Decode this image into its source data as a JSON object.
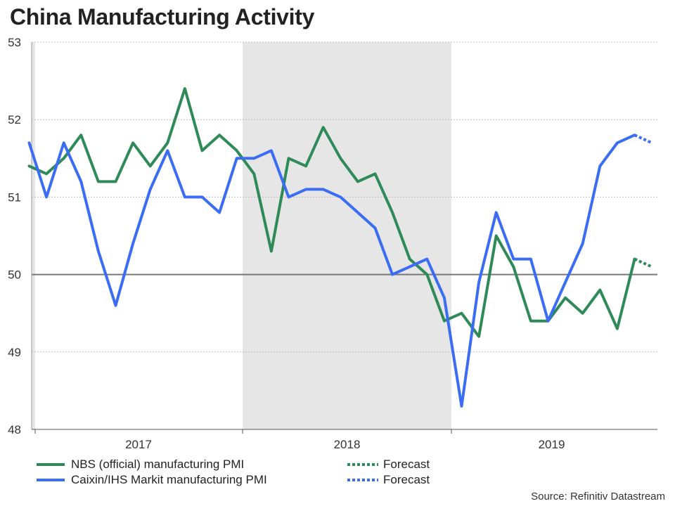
{
  "chart_data": {
    "type": "line",
    "title": "China Manufacturing Activity",
    "source": "Source: Refinitiv Datastream",
    "ylim": [
      48,
      53
    ],
    "yticks": [
      48,
      49,
      50,
      51,
      52,
      53
    ],
    "reference_line": 50,
    "x_labels": [
      "2017",
      "2018",
      "2019"
    ],
    "shaded_period": "2018",
    "grid": true,
    "months": [
      "2016-11",
      "2016-12",
      "2017-01",
      "2017-02",
      "2017-03",
      "2017-04",
      "2017-05",
      "2017-06",
      "2017-07",
      "2017-08",
      "2017-09",
      "2017-10",
      "2017-11",
      "2017-12",
      "2018-01",
      "2018-02",
      "2018-03",
      "2018-04",
      "2018-05",
      "2018-06",
      "2018-07",
      "2018-08",
      "2018-09",
      "2018-10",
      "2018-11",
      "2018-12",
      "2019-01",
      "2019-02",
      "2019-03",
      "2019-04",
      "2019-05",
      "2019-06",
      "2019-07",
      "2019-08",
      "2019-09",
      "2019-10",
      "2019-11",
      "2019-12"
    ],
    "series": [
      {
        "name": "NBS (official) manufacturing PMI",
        "color": "#2e8b57",
        "values": [
          51.4,
          51.3,
          51.5,
          51.8,
          51.2,
          51.2,
          51.7,
          51.4,
          51.7,
          52.4,
          51.6,
          51.8,
          51.6,
          51.3,
          50.3,
          51.5,
          51.4,
          51.9,
          51.5,
          51.2,
          51.3,
          50.8,
          50.2,
          50.0,
          49.4,
          49.5,
          49.2,
          50.5,
          50.1,
          49.4,
          49.4,
          49.7,
          49.5,
          49.8,
          49.3,
          50.2
        ],
        "forecast": [
          50.2,
          50.1
        ]
      },
      {
        "name": "Caixin/IHS Markit manufacturing PMI",
        "color": "#3b6cf4",
        "values": [
          51.7,
          51.0,
          51.7,
          51.2,
          50.3,
          49.6,
          50.4,
          51.1,
          51.6,
          51.0,
          51.0,
          50.8,
          51.5,
          51.5,
          51.6,
          51.0,
          51.1,
          51.1,
          51.0,
          50.8,
          50.6,
          50.0,
          50.1,
          50.2,
          49.7,
          48.3,
          49.9,
          50.8,
          50.2,
          50.2,
          49.4,
          49.9,
          50.4,
          51.4,
          51.7,
          51.8
        ],
        "forecast": [
          51.8,
          51.7
        ]
      }
    ]
  },
  "legend": {
    "nbs": "NBS (official) manufacturing PMI",
    "caixin": "Caixin/IHS Markit manufacturing PMI",
    "forecast_nbs": "Forecast",
    "forecast_caixin": "Forecast"
  }
}
